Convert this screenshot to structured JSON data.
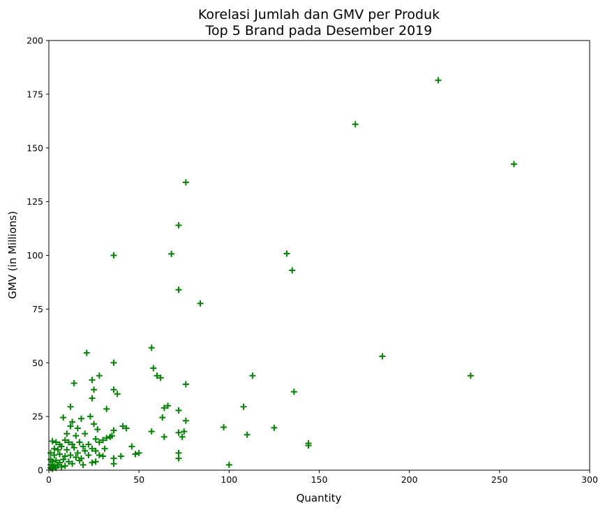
{
  "chart_data": {
    "type": "scatter",
    "title_line1": "Korelasi Jumlah dan GMV per Produk",
    "title_line2": "Top 5 Brand pada Desember 2019",
    "xlabel": "Quantity",
    "ylabel": "GMV (in Millions)",
    "xlim": [
      0,
      300
    ],
    "ylim": [
      0,
      200
    ],
    "xticks": [
      0,
      50,
      100,
      150,
      200,
      250,
      300
    ],
    "yticks": [
      0,
      25,
      50,
      75,
      100,
      125,
      150,
      175,
      200
    ],
    "xtick_labels": [
      "0",
      "50",
      "100",
      "150",
      "200",
      "250",
      "300"
    ],
    "ytick_labels": [
      "0",
      "25",
      "50",
      "75",
      "100",
      "125",
      "150",
      "175",
      "200"
    ],
    "marker": "+",
    "color": "#008000",
    "grid": false,
    "points": [
      [
        216,
        181.5
      ],
      [
        170,
        161
      ],
      [
        258,
        142.5
      ],
      [
        76,
        134
      ],
      [
        72,
        114
      ],
      [
        36,
        100
      ],
      [
        68,
        100.7
      ],
      [
        132,
        100.8
      ],
      [
        135,
        93
      ],
      [
        72,
        84
      ],
      [
        84,
        77.6
      ],
      [
        57,
        57
      ],
      [
        21,
        54.6
      ],
      [
        36,
        50
      ],
      [
        185,
        53
      ],
      [
        58,
        47.5
      ],
      [
        60,
        44
      ],
      [
        62,
        43
      ],
      [
        113,
        44
      ],
      [
        234,
        44
      ],
      [
        24,
        42
      ],
      [
        28,
        44
      ],
      [
        14,
        40.5
      ],
      [
        76,
        40
      ],
      [
        25,
        37.5
      ],
      [
        36,
        37.5
      ],
      [
        38,
        35.5
      ],
      [
        136,
        36.5
      ],
      [
        24,
        33.5
      ],
      [
        12,
        29.5
      ],
      [
        32,
        28.5
      ],
      [
        64,
        29
      ],
      [
        66,
        30
      ],
      [
        72,
        27.8
      ],
      [
        108,
        29.5
      ],
      [
        8,
        24.5
      ],
      [
        18,
        24
      ],
      [
        23,
        25
      ],
      [
        63,
        24.5
      ],
      [
        76,
        23
      ],
      [
        13,
        22.5
      ],
      [
        25,
        21.5
      ],
      [
        12,
        20.5
      ],
      [
        16,
        19.5
      ],
      [
        27,
        19
      ],
      [
        36,
        18.5
      ],
      [
        41,
        20.5
      ],
      [
        43,
        19.5
      ],
      [
        57,
        18
      ],
      [
        75,
        18
      ],
      [
        97,
        20
      ],
      [
        125,
        19.7
      ],
      [
        10,
        17
      ],
      [
        15,
        16
      ],
      [
        20,
        17
      ],
      [
        35,
        16
      ],
      [
        72,
        17.5
      ],
      [
        74,
        15.5
      ],
      [
        110,
        16.5
      ],
      [
        64,
        15.5
      ],
      [
        26,
        14.5
      ],
      [
        30,
        14
      ],
      [
        32,
        15
      ],
      [
        34,
        15.5
      ],
      [
        28,
        13
      ],
      [
        144,
        12.5
      ],
      [
        144,
        11.5
      ],
      [
        2,
        13.5
      ],
      [
        4,
        13
      ],
      [
        6,
        12
      ],
      [
        9,
        14
      ],
      [
        11,
        13
      ],
      [
        13,
        12
      ],
      [
        17,
        13
      ],
      [
        19,
        11
      ],
      [
        22,
        12
      ],
      [
        24,
        10
      ],
      [
        46,
        11
      ],
      [
        3,
        10
      ],
      [
        5,
        9.5
      ],
      [
        7,
        11
      ],
      [
        10,
        9.5
      ],
      [
        14,
        10.5
      ],
      [
        16,
        8
      ],
      [
        20,
        9
      ],
      [
        26,
        9
      ],
      [
        31,
        10
      ],
      [
        1,
        8
      ],
      [
        3,
        7
      ],
      [
        6,
        7.5
      ],
      [
        9,
        6.5
      ],
      [
        12,
        7
      ],
      [
        15,
        6
      ],
      [
        18,
        5.5
      ],
      [
        22,
        7
      ],
      [
        28,
        7
      ],
      [
        30,
        6.5
      ],
      [
        40,
        6.5
      ],
      [
        48,
        7.5
      ],
      [
        50,
        8
      ],
      [
        36,
        5.5
      ],
      [
        72,
        8
      ],
      [
        72,
        5.5
      ],
      [
        1,
        5
      ],
      [
        2,
        4
      ],
      [
        4,
        4.5
      ],
      [
        6,
        3.5
      ],
      [
        8,
        5
      ],
      [
        11,
        4
      ],
      [
        13,
        3
      ],
      [
        17,
        4.5
      ],
      [
        19,
        2.5
      ],
      [
        24,
        3.5
      ],
      [
        26,
        4
      ],
      [
        36,
        3
      ],
      [
        1,
        2.5
      ],
      [
        2,
        1.5
      ],
      [
        3,
        2
      ],
      [
        5,
        2.5
      ],
      [
        7,
        1.5
      ],
      [
        9,
        2
      ],
      [
        1,
        1
      ],
      [
        2,
        0.6
      ],
      [
        4,
        1
      ],
      [
        100,
        2.5
      ]
    ]
  }
}
